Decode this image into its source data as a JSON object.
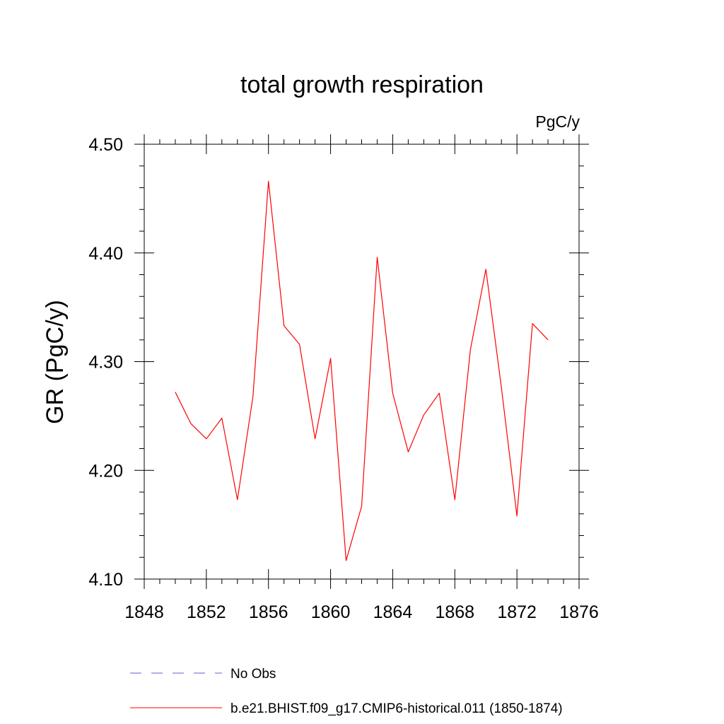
{
  "chart_data": {
    "type": "line",
    "title": "total growth respiration",
    "units_label": "PgC/y",
    "ylabel": "GR  (PgC/y)",
    "xlabel": "",
    "xlim": [
      1848,
      1876
    ],
    "ylim": [
      4.1,
      4.5
    ],
    "x_ticks": [
      1848,
      1852,
      1856,
      1860,
      1864,
      1868,
      1872,
      1876
    ],
    "x_tick_labels": [
      "1848",
      "1852",
      "1856",
      "1860",
      "1864",
      "1868",
      "1872",
      "1876"
    ],
    "x_minor_step": 1,
    "y_ticks": [
      4.1,
      4.2,
      4.3,
      4.4,
      4.5
    ],
    "y_tick_labels": [
      "4.10",
      "4.20",
      "4.30",
      "4.40",
      "4.50"
    ],
    "y_minor_step": 0.02,
    "grid": false,
    "legend_position": "bottom",
    "series": [
      {
        "name": "b.e21.BHIST.f09_g17.CMIP6-historical.011 (1850-1874)",
        "color": "#ff0000",
        "style": "solid",
        "x": [
          1850,
          1851,
          1852,
          1853,
          1854,
          1855,
          1856,
          1857,
          1858,
          1859,
          1860,
          1861,
          1862,
          1863,
          1864,
          1865,
          1866,
          1867,
          1868,
          1869,
          1870,
          1871,
          1872,
          1873,
          1874
        ],
        "y": [
          4.272,
          4.243,
          4.229,
          4.248,
          4.173,
          4.268,
          4.466,
          4.333,
          4.316,
          4.229,
          4.303,
          4.117,
          4.167,
          4.396,
          4.271,
          4.217,
          4.251,
          4.271,
          4.173,
          4.311,
          4.385,
          4.276,
          4.158,
          4.335,
          4.32
        ]
      }
    ],
    "legend": [
      {
        "label": "No Obs",
        "color": "#6a5acd",
        "style": "dashed"
      },
      {
        "label": "b.e21.BHIST.f09_g17.CMIP6-historical.011 (1850-1874)",
        "color": "#ff0000",
        "style": "solid"
      }
    ]
  }
}
